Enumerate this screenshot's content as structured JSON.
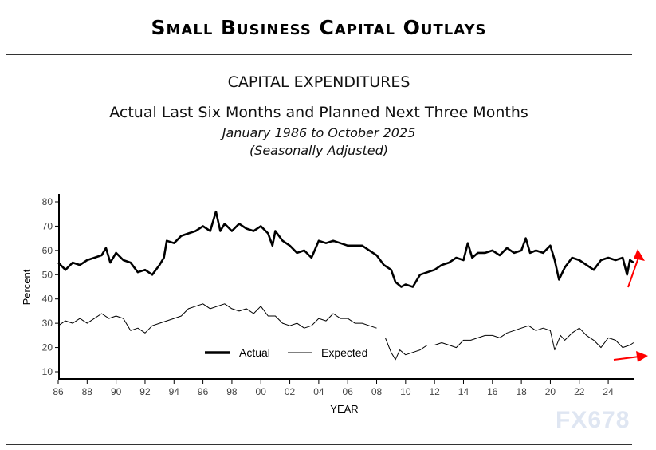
{
  "header": {
    "title": "Small Business Capital Outlays",
    "watermark": "FX678"
  },
  "chart_data": {
    "type": "line",
    "title": "CAPITAL EXPENDITURES",
    "subtitle": "Actual Last Six Months and Planned Next Three Months",
    "date_range": "January 1986 to October 2025",
    "note": "(Seasonally Adjusted)",
    "xlabel": "YEAR",
    "ylabel": "Percent",
    "xlim": [
      1986,
      2026
    ],
    "ylim": [
      8,
      83
    ],
    "x_ticks": [
      "86",
      "88",
      "90",
      "92",
      "94",
      "96",
      "98",
      "00",
      "02",
      "04",
      "06",
      "08",
      "10",
      "12",
      "14",
      "16",
      "18",
      "20",
      "22",
      "24"
    ],
    "y_ticks": [
      10,
      20,
      30,
      40,
      50,
      60,
      70,
      80
    ],
    "grid": false,
    "legend_position": "bottom-center",
    "series": [
      {
        "name": "Actual",
        "color": "#000000",
        "points": [
          [
            1986,
            55
          ],
          [
            1986.5,
            52
          ],
          [
            1987,
            55
          ],
          [
            1987.5,
            54
          ],
          [
            1988,
            56
          ],
          [
            1988.5,
            57
          ],
          [
            1989,
            58
          ],
          [
            1989.3,
            61
          ],
          [
            1989.6,
            55
          ],
          [
            1990,
            59
          ],
          [
            1990.5,
            56
          ],
          [
            1991,
            55
          ],
          [
            1991.5,
            51
          ],
          [
            1992,
            52
          ],
          [
            1992.5,
            50
          ],
          [
            1993,
            54
          ],
          [
            1993.3,
            57
          ],
          [
            1993.5,
            64
          ],
          [
            1994,
            63
          ],
          [
            1994.5,
            66
          ],
          [
            1995,
            67
          ],
          [
            1995.5,
            68
          ],
          [
            1996,
            70
          ],
          [
            1996.5,
            68
          ],
          [
            1996.9,
            76
          ],
          [
            1997.2,
            68
          ],
          [
            1997.5,
            71
          ],
          [
            1998,
            68
          ],
          [
            1998.5,
            71
          ],
          [
            1999,
            69
          ],
          [
            1999.5,
            68
          ],
          [
            2000,
            70
          ],
          [
            2000.5,
            67
          ],
          [
            2000.8,
            62
          ],
          [
            2001,
            68
          ],
          [
            2001.5,
            64
          ],
          [
            2002,
            62
          ],
          [
            2002.5,
            59
          ],
          [
            2003,
            60
          ],
          [
            2003.5,
            57
          ],
          [
            2004,
            64
          ],
          [
            2004.5,
            63
          ],
          [
            2005,
            64
          ],
          [
            2005.5,
            63
          ],
          [
            2006,
            62
          ],
          [
            2006.5,
            62
          ],
          [
            2007,
            62
          ],
          [
            2007.5,
            60
          ],
          [
            2008,
            58
          ],
          [
            2008.5,
            54
          ],
          [
            2009,
            52
          ],
          [
            2009.3,
            47
          ],
          [
            2009.7,
            45
          ],
          [
            2010,
            46
          ],
          [
            2010.5,
            45
          ],
          [
            2011,
            50
          ],
          [
            2011.5,
            51
          ],
          [
            2012,
            52
          ],
          [
            2012.5,
            54
          ],
          [
            2013,
            55
          ],
          [
            2013.5,
            57
          ],
          [
            2014,
            56
          ],
          [
            2014.3,
            63
          ],
          [
            2014.6,
            57
          ],
          [
            2015,
            59
          ],
          [
            2015.5,
            59
          ],
          [
            2016,
            60
          ],
          [
            2016.5,
            58
          ],
          [
            2017,
            61
          ],
          [
            2017.5,
            59
          ],
          [
            2018,
            60
          ],
          [
            2018.3,
            65
          ],
          [
            2018.6,
            59
          ],
          [
            2019,
            60
          ],
          [
            2019.5,
            59
          ],
          [
            2020,
            62
          ],
          [
            2020.3,
            56
          ],
          [
            2020.6,
            48
          ],
          [
            2021,
            53
          ],
          [
            2021.5,
            57
          ],
          [
            2022,
            56
          ],
          [
            2022.5,
            54
          ],
          [
            2023,
            52
          ],
          [
            2023.5,
            56
          ],
          [
            2024,
            57
          ],
          [
            2024.5,
            56
          ],
          [
            2025,
            57
          ],
          [
            2025.3,
            50
          ],
          [
            2025.5,
            56
          ],
          [
            2025.75,
            55
          ]
        ]
      },
      {
        "name": "Expected",
        "color": "#000000",
        "points": [
          [
            1986,
            29
          ],
          [
            1986.5,
            31
          ],
          [
            1987,
            30
          ],
          [
            1987.5,
            32
          ],
          [
            1988,
            30
          ],
          [
            1988.5,
            32
          ],
          [
            1989,
            34
          ],
          [
            1989.5,
            32
          ],
          [
            1990,
            33
          ],
          [
            1990.5,
            32
          ],
          [
            1991,
            27
          ],
          [
            1991.5,
            28
          ],
          [
            1992,
            26
          ],
          [
            1992.5,
            29
          ],
          [
            1993,
            30
          ],
          [
            1993.5,
            31
          ],
          [
            1994,
            32
          ],
          [
            1994.5,
            33
          ],
          [
            1995,
            36
          ],
          [
            1995.5,
            37
          ],
          [
            1996,
            38
          ],
          [
            1996.5,
            36
          ],
          [
            1997,
            37
          ],
          [
            1997.5,
            38
          ],
          [
            1998,
            36
          ],
          [
            1998.5,
            35
          ],
          [
            1999,
            36
          ],
          [
            1999.5,
            34
          ],
          [
            2000,
            37
          ],
          [
            2000.5,
            33
          ],
          [
            2001,
            33
          ],
          [
            2001.5,
            30
          ],
          [
            2002,
            29
          ],
          [
            2002.5,
            30
          ],
          [
            2003,
            28
          ],
          [
            2003.5,
            29
          ],
          [
            2004,
            32
          ],
          [
            2004.5,
            31
          ],
          [
            2005,
            34
          ],
          [
            2005.5,
            32
          ],
          [
            2006,
            32
          ],
          [
            2006.5,
            30
          ],
          [
            2007,
            30
          ],
          [
            2007.5,
            29
          ],
          [
            2008,
            28
          ],
          [
            2008.3,
            null
          ],
          [
            2008.6,
            24
          ],
          [
            2009,
            18
          ],
          [
            2009.3,
            15
          ],
          [
            2009.6,
            19
          ],
          [
            2010,
            17
          ],
          [
            2010.5,
            18
          ],
          [
            2011,
            19
          ],
          [
            2011.5,
            21
          ],
          [
            2012,
            21
          ],
          [
            2012.5,
            22
          ],
          [
            2013,
            21
          ],
          [
            2013.5,
            20
          ],
          [
            2014,
            23
          ],
          [
            2014.5,
            23
          ],
          [
            2015,
            24
          ],
          [
            2015.5,
            25
          ],
          [
            2016,
            25
          ],
          [
            2016.5,
            24
          ],
          [
            2017,
            26
          ],
          [
            2017.5,
            27
          ],
          [
            2018,
            28
          ],
          [
            2018.5,
            29
          ],
          [
            2019,
            27
          ],
          [
            2019.5,
            28
          ],
          [
            2020,
            27
          ],
          [
            2020.3,
            19
          ],
          [
            2020.7,
            25
          ],
          [
            2021,
            23
          ],
          [
            2021.5,
            26
          ],
          [
            2022,
            28
          ],
          [
            2022.5,
            25
          ],
          [
            2023,
            23
          ],
          [
            2023.5,
            20
          ],
          [
            2024,
            24
          ],
          [
            2024.5,
            23
          ],
          [
            2025,
            20
          ],
          [
            2025.5,
            21
          ],
          [
            2025.75,
            22
          ]
        ]
      }
    ],
    "annotations": [
      {
        "type": "arrow",
        "direction": "up",
        "color": "#ff0000",
        "near_series": "Actual"
      },
      {
        "type": "arrow",
        "direction": "right",
        "color": "#ff0000",
        "near_series": "Expected"
      }
    ]
  }
}
